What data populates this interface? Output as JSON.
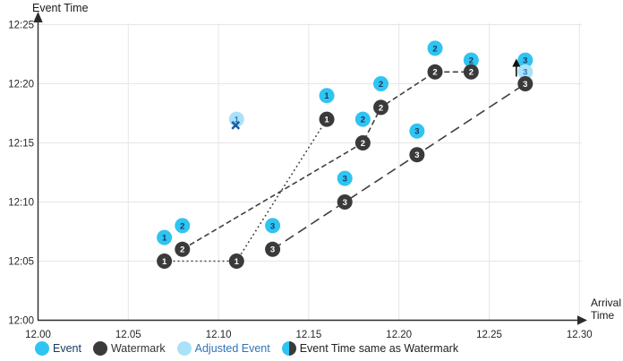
{
  "figure": {
    "y_axis_title": "Event Time",
    "x_axis_title_line1": "Arrival",
    "x_axis_title_line2": "Time"
  },
  "colors": {
    "event": "#2fc4f2",
    "adjusted": "#a9e2f8",
    "watermark": "#3a3a3a",
    "event_number": "#17375e",
    "adjusted_number": "#2e75b6",
    "x_mark": "#1e5aa8",
    "grid": "#e6e6e6",
    "axis": "#2b2b2b",
    "line": "#3f3f3f",
    "tick_text": "#262626",
    "legend_event_text": "#17375e",
    "legend_watermark_text": "#333333",
    "legend_adjusted_text": "#2e75b6",
    "legend_half_text": "#222222"
  },
  "legend": [
    {
      "type": "event",
      "label": "Event"
    },
    {
      "type": "watermark",
      "label": "Watermark"
    },
    {
      "type": "adjusted",
      "label": "Adjusted Event"
    },
    {
      "type": "half",
      "label": "Event Time same as Watermark"
    }
  ],
  "chart_data": {
    "type": "scatter",
    "title": "",
    "grid": true,
    "x_axis": {
      "label": "Arrival Time",
      "ticks": [
        "12.00",
        "12.05",
        "12.10",
        "12.15",
        "12.20",
        "12.25",
        "12.30"
      ],
      "tick_values": [
        12.0,
        12.05,
        12.1,
        12.15,
        12.2,
        12.25,
        12.3
      ],
      "range": [
        12.0,
        12.3
      ]
    },
    "y_axis": {
      "label": "Event Time",
      "ticks": [
        "12:00",
        "12:05",
        "12:10",
        "12:15",
        "12:20",
        "12:25"
      ],
      "tick_minutes": [
        0,
        5,
        10,
        15,
        20,
        25
      ],
      "range_minutes": [
        0,
        25
      ]
    },
    "substreams": [
      {
        "id": 1,
        "line_style": "dotted",
        "watermark_path": [
          [
            12.07,
            5
          ],
          [
            12.11,
            5
          ],
          [
            12.16,
            17
          ]
        ],
        "markers": [
          {
            "kind": "event",
            "label": "1",
            "arrival": 12.07,
            "minutes": 7
          },
          {
            "kind": "watermark",
            "label": "1",
            "arrival": 12.07,
            "minutes": 5
          },
          {
            "kind": "watermark",
            "label": "1",
            "arrival": 12.11,
            "minutes": 5
          },
          {
            "kind": "adjusted",
            "label": "1",
            "arrival": 12.11,
            "minutes": 17,
            "crossed_out": true
          },
          {
            "kind": "event",
            "label": "1",
            "arrival": 12.16,
            "minutes": 19
          },
          {
            "kind": "watermark",
            "label": "1",
            "arrival": 12.16,
            "minutes": 17
          }
        ]
      },
      {
        "id": 2,
        "line_style": "dashed",
        "watermark_path": [
          [
            12.08,
            6
          ],
          [
            12.18,
            15
          ],
          [
            12.19,
            18
          ],
          [
            12.22,
            21
          ],
          [
            12.24,
            21
          ]
        ],
        "markers": [
          {
            "kind": "event",
            "label": "2",
            "arrival": 12.08,
            "minutes": 8
          },
          {
            "kind": "watermark",
            "label": "2",
            "arrival": 12.08,
            "minutes": 6
          },
          {
            "kind": "event",
            "label": "2",
            "arrival": 12.18,
            "minutes": 17
          },
          {
            "kind": "watermark",
            "label": "2",
            "arrival": 12.18,
            "minutes": 15
          },
          {
            "kind": "event",
            "label": "2",
            "arrival": 12.19,
            "minutes": 20
          },
          {
            "kind": "watermark",
            "label": "2",
            "arrival": 12.19,
            "minutes": 18
          },
          {
            "kind": "event",
            "label": "2",
            "arrival": 12.22,
            "minutes": 23
          },
          {
            "kind": "watermark",
            "label": "2",
            "arrival": 12.22,
            "minutes": 21
          },
          {
            "kind": "event",
            "label": "2",
            "arrival": 12.24,
            "minutes": 22
          },
          {
            "kind": "watermark",
            "label": "2",
            "arrival": 12.24,
            "minutes": 21
          }
        ]
      },
      {
        "id": 3,
        "line_style": "longdash",
        "watermark_path": [
          [
            12.13,
            6
          ],
          [
            12.17,
            10
          ],
          [
            12.21,
            14
          ],
          [
            12.27,
            20
          ]
        ],
        "markers": [
          {
            "kind": "event",
            "label": "3",
            "arrival": 12.13,
            "minutes": 8
          },
          {
            "kind": "watermark",
            "label": "3",
            "arrival": 12.13,
            "minutes": 6
          },
          {
            "kind": "event",
            "label": "3",
            "arrival": 12.17,
            "minutes": 12
          },
          {
            "kind": "watermark",
            "label": "3",
            "arrival": 12.17,
            "minutes": 10
          },
          {
            "kind": "event",
            "label": "3",
            "arrival": 12.21,
            "minutes": 16
          },
          {
            "kind": "watermark",
            "label": "3",
            "arrival": 12.21,
            "minutes": 14
          },
          {
            "kind": "event",
            "label": "3",
            "arrival": 12.27,
            "minutes": 22
          },
          {
            "kind": "adjusted",
            "label": "3",
            "arrival": 12.27,
            "minutes": 21
          },
          {
            "kind": "watermark",
            "label": "3",
            "arrival": 12.27,
            "minutes": 20,
            "up_arrow": true
          }
        ]
      }
    ]
  }
}
